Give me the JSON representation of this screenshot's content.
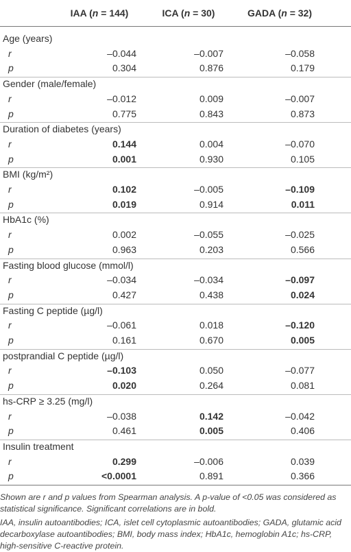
{
  "table": {
    "header": [
      [
        "IAA (",
        "n",
        " = 144)"
      ],
      [
        "ICA (",
        "n",
        " = 30)"
      ],
      [
        "GADA (",
        "n",
        " = 32)"
      ]
    ],
    "groups": [
      {
        "label": "Age (years)",
        "rows": [
          {
            "stat": "r",
            "values": [
              "–0.044",
              "–0.007",
              "–0.058"
            ],
            "bold": [
              false,
              false,
              false
            ]
          },
          {
            "stat": "p",
            "values": [
              "0.304",
              "0.876",
              "0.179"
            ],
            "bold": [
              false,
              false,
              false
            ]
          }
        ]
      },
      {
        "label": "Gender (male/female)",
        "rows": [
          {
            "stat": "r",
            "values": [
              "–0.012",
              "0.009",
              "–0.007"
            ],
            "bold": [
              false,
              false,
              false
            ]
          },
          {
            "stat": "p",
            "values": [
              "0.775",
              "0.843",
              "0.873"
            ],
            "bold": [
              false,
              false,
              false
            ]
          }
        ]
      },
      {
        "label": "Duration of diabetes (years)",
        "rows": [
          {
            "stat": "r",
            "values": [
              "0.144",
              "0.004",
              "–0.070"
            ],
            "bold": [
              true,
              false,
              false
            ]
          },
          {
            "stat": "p",
            "values": [
              "0.001",
              "0.930",
              "0.105"
            ],
            "bold": [
              true,
              false,
              false
            ]
          }
        ]
      },
      {
        "label": "BMI (kg/m²)",
        "rows": [
          {
            "stat": "r",
            "values": [
              "0.102",
              "–0.005",
              "–0.109"
            ],
            "bold": [
              true,
              false,
              true
            ]
          },
          {
            "stat": "p",
            "values": [
              "0.019",
              "0.914",
              "0.011"
            ],
            "bold": [
              true,
              false,
              true
            ]
          }
        ]
      },
      {
        "label": "HbA1c (%)",
        "rows": [
          {
            "stat": "r",
            "values": [
              "0.002",
              "–0.055",
              "–0.025"
            ],
            "bold": [
              false,
              false,
              false
            ]
          },
          {
            "stat": "p",
            "values": [
              "0.963",
              "0.203",
              "0.566"
            ],
            "bold": [
              false,
              false,
              false
            ]
          }
        ]
      },
      {
        "label": "Fasting blood glucose (mmol/l)",
        "rows": [
          {
            "stat": "r",
            "values": [
              "–0.034",
              "–0.034",
              "–0.097"
            ],
            "bold": [
              false,
              false,
              true
            ]
          },
          {
            "stat": "p",
            "values": [
              "0.427",
              "0.438",
              "0.024"
            ],
            "bold": [
              false,
              false,
              true
            ]
          }
        ]
      },
      {
        "label": "Fasting C peptide (µg/l)",
        "rows": [
          {
            "stat": "r",
            "values": [
              "–0.061",
              "0.018",
              "–0.120"
            ],
            "bold": [
              false,
              false,
              true
            ]
          },
          {
            "stat": "p",
            "values": [
              "0.161",
              "0.670",
              "0.005"
            ],
            "bold": [
              false,
              false,
              true
            ]
          }
        ]
      },
      {
        "label": "postprandial C peptide (µg/l)",
        "rows": [
          {
            "stat": "r",
            "values": [
              "–0.103",
              "0.050",
              "–0.077"
            ],
            "bold": [
              true,
              false,
              false
            ]
          },
          {
            "stat": "p",
            "values": [
              "0.020",
              "0.264",
              "0.081"
            ],
            "bold": [
              true,
              false,
              false
            ]
          }
        ]
      },
      {
        "label": "hs-CRP ≥ 3.25 (mg/l)",
        "rows": [
          {
            "stat": "r",
            "values": [
              "–0.038",
              "0.142",
              "–0.042"
            ],
            "bold": [
              false,
              true,
              false
            ]
          },
          {
            "stat": "p",
            "values": [
              "0.461",
              "0.005",
              "0.406"
            ],
            "bold": [
              false,
              true,
              false
            ]
          }
        ]
      },
      {
        "label": "Insulin treatment",
        "rows": [
          {
            "stat": "r",
            "values": [
              "0.299",
              "–0.006",
              "0.039"
            ],
            "bold": [
              true,
              false,
              false
            ]
          },
          {
            "stat": "p",
            "values": [
              "<0.0001",
              "0.891",
              "0.366"
            ],
            "bold": [
              true,
              false,
              false
            ]
          }
        ]
      }
    ],
    "footnotes": [
      "Shown are r and p values from Spearman analysis. A p-value of <0.05 was considered as statistical significance. Significant correlations are in bold.",
      "IAA, insulin autoantibodies; ICA, islet cell cytoplasmic autoantibodies; GADA, glutamic acid decarboxylase autoantibodies; BMI, body mass index; HbA1c, hemoglobin A1c; hs-CRP, high-sensitive C-reactive protein."
    ]
  }
}
